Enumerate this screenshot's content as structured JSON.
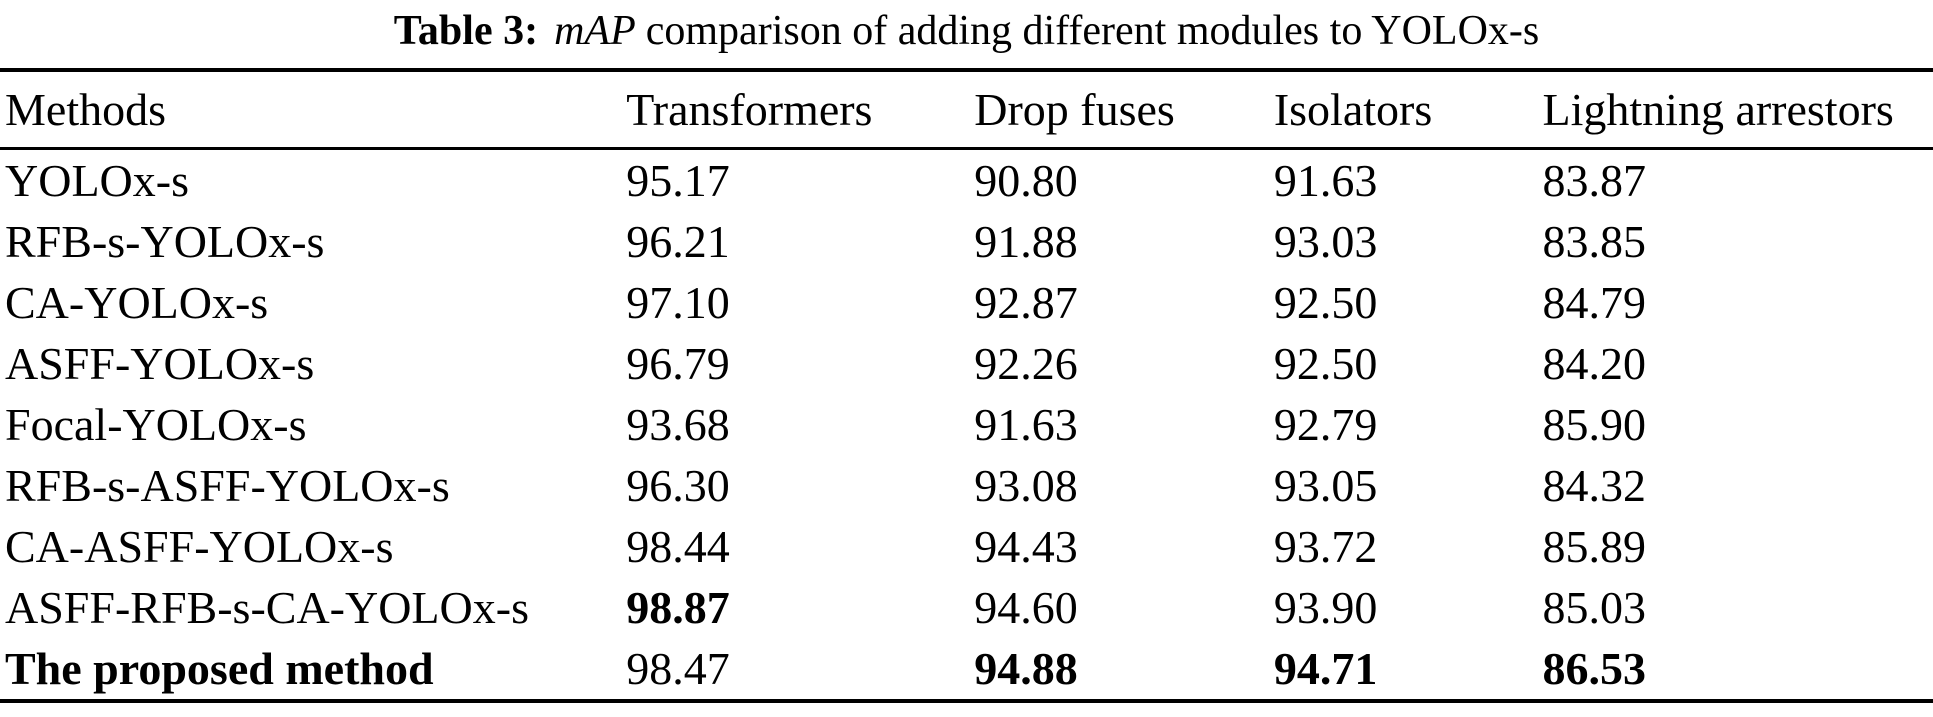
{
  "caption": {
    "label": "Table 3:",
    "italic_term": "mAP",
    "text": "comparison of adding different modules to YOLOx-s"
  },
  "table": {
    "columns": [
      "Methods",
      "Transformers",
      "Drop fuses",
      "Isolators",
      "Lightning arrestors"
    ],
    "rows": [
      {
        "method": "YOLOx-s",
        "method_bold": false,
        "values": [
          "95.17",
          "90.80",
          "91.63",
          "83.87"
        ],
        "bold_values": [
          false,
          false,
          false,
          false
        ]
      },
      {
        "method": "RFB-s-YOLOx-s",
        "method_bold": false,
        "values": [
          "96.21",
          "91.88",
          "93.03",
          "83.85"
        ],
        "bold_values": [
          false,
          false,
          false,
          false
        ]
      },
      {
        "method": "CA-YOLOx-s",
        "method_bold": false,
        "values": [
          "97.10",
          "92.87",
          "92.50",
          "84.79"
        ],
        "bold_values": [
          false,
          false,
          false,
          false
        ]
      },
      {
        "method": "ASFF-YOLOx-s",
        "method_bold": false,
        "values": [
          "96.79",
          "92.26",
          "92.50",
          "84.20"
        ],
        "bold_values": [
          false,
          false,
          false,
          false
        ]
      },
      {
        "method": "Focal-YOLOx-s",
        "method_bold": false,
        "values": [
          "93.68",
          "91.63",
          "92.79",
          "85.90"
        ],
        "bold_values": [
          false,
          false,
          false,
          false
        ]
      },
      {
        "method": "RFB-s-ASFF-YOLOx-s",
        "method_bold": false,
        "values": [
          "96.30",
          "93.08",
          "93.05",
          "84.32"
        ],
        "bold_values": [
          false,
          false,
          false,
          false
        ]
      },
      {
        "method": "CA-ASFF-YOLOx-s",
        "method_bold": false,
        "values": [
          "98.44",
          "94.43",
          "93.72",
          "85.89"
        ],
        "bold_values": [
          false,
          false,
          false,
          false
        ]
      },
      {
        "method": "ASFF-RFB-s-CA-YOLOx-s",
        "method_bold": false,
        "values": [
          "98.87",
          "94.60",
          "93.90",
          "85.03"
        ],
        "bold_values": [
          true,
          false,
          false,
          false
        ]
      },
      {
        "method": "The proposed method",
        "method_bold": true,
        "values": [
          "98.47",
          "94.88",
          "94.71",
          "86.53"
        ],
        "bold_values": [
          false,
          true,
          true,
          true
        ]
      }
    ]
  },
  "colors": {
    "text": "#000000",
    "background": "#ffffff",
    "rule": "#000000"
  }
}
